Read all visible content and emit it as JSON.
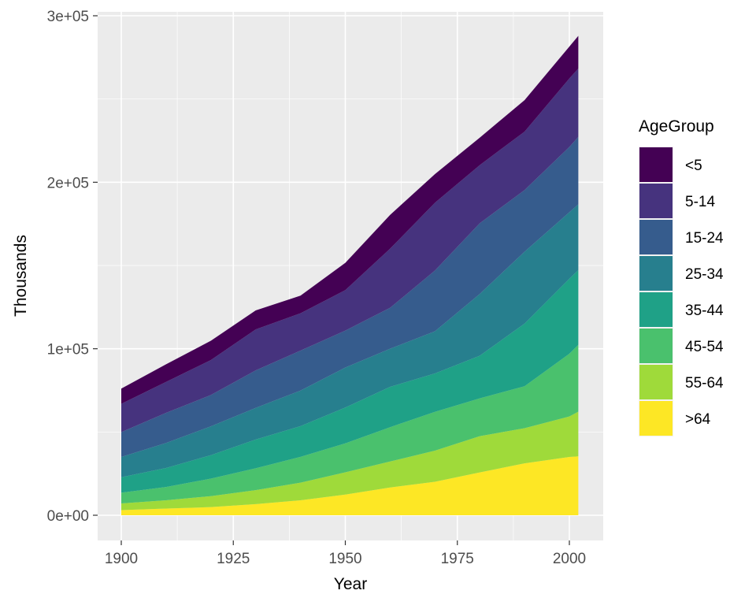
{
  "chart_data": {
    "type": "area",
    "stacked": true,
    "title": "",
    "xlabel": "Year",
    "ylabel": "Thousands",
    "xlim": [
      1900,
      2002
    ],
    "ylim": [
      0,
      300000
    ],
    "x_ticks": [
      1900,
      1925,
      1950,
      1975,
      2000
    ],
    "x_tick_labels": [
      "1900",
      "1925",
      "1950",
      "1975",
      "2000"
    ],
    "y_ticks": [
      0,
      100000,
      200000,
      300000
    ],
    "y_tick_labels": [
      "0e+00",
      "1e+05",
      "2e+05",
      "3e+05"
    ],
    "grid": true,
    "legend": {
      "title": "AgeGroup",
      "position": "right"
    },
    "x": [
      1900,
      1910,
      1920,
      1930,
      1940,
      1950,
      1960,
      1970,
      1980,
      1990,
      2000,
      2002
    ],
    "series": [
      {
        "name": "<5",
        "color": "#440154",
        "values": [
          9181,
          10600,
          11600,
          11400,
          10600,
          16400,
          20300,
          17200,
          16500,
          18900,
          19200,
          19609
        ]
      },
      {
        "name": "5-14",
        "color": "#46337E",
        "values": [
          16966,
          18600,
          21000,
          24600,
          22400,
          24300,
          35500,
          40700,
          34900,
          35100,
          41100,
          41049
        ]
      },
      {
        "name": "15-24",
        "color": "#365C8D",
        "values": [
          14951,
          18100,
          18800,
          22500,
          24000,
          22200,
          24600,
          36500,
          42500,
          37000,
          39200,
          40542
        ]
      },
      {
        "name": "25-34",
        "color": "#277F8E",
        "values": [
          12161,
          15000,
          17300,
          19000,
          21400,
          24000,
          22900,
          25300,
          37100,
          43200,
          39900,
          39502
        ]
      },
      {
        "name": "35-44",
        "color": "#1FA187",
        "values": [
          9273,
          11400,
          14100,
          17300,
          18400,
          21500,
          24200,
          23100,
          25600,
          37600,
          45100,
          44900
        ]
      },
      {
        "name": "45-54",
        "color": "#4AC16D",
        "values": [
          6437,
          8000,
          10500,
          13100,
          15500,
          17400,
          20600,
          23300,
          22700,
          25200,
          37700,
          40112
        ]
      },
      {
        "name": "55-64",
        "color": "#9FDA3A",
        "values": [
          4026,
          5000,
          6600,
          8400,
          10600,
          13400,
          15600,
          18700,
          21800,
          21100,
          24300,
          26873
        ]
      },
      {
        "name": ">64",
        "color": "#FDE725",
        "values": [
          3099,
          4000,
          4900,
          6700,
          9000,
          12400,
          16700,
          20100,
          25700,
          31200,
          35000,
          35345
        ]
      }
    ]
  }
}
